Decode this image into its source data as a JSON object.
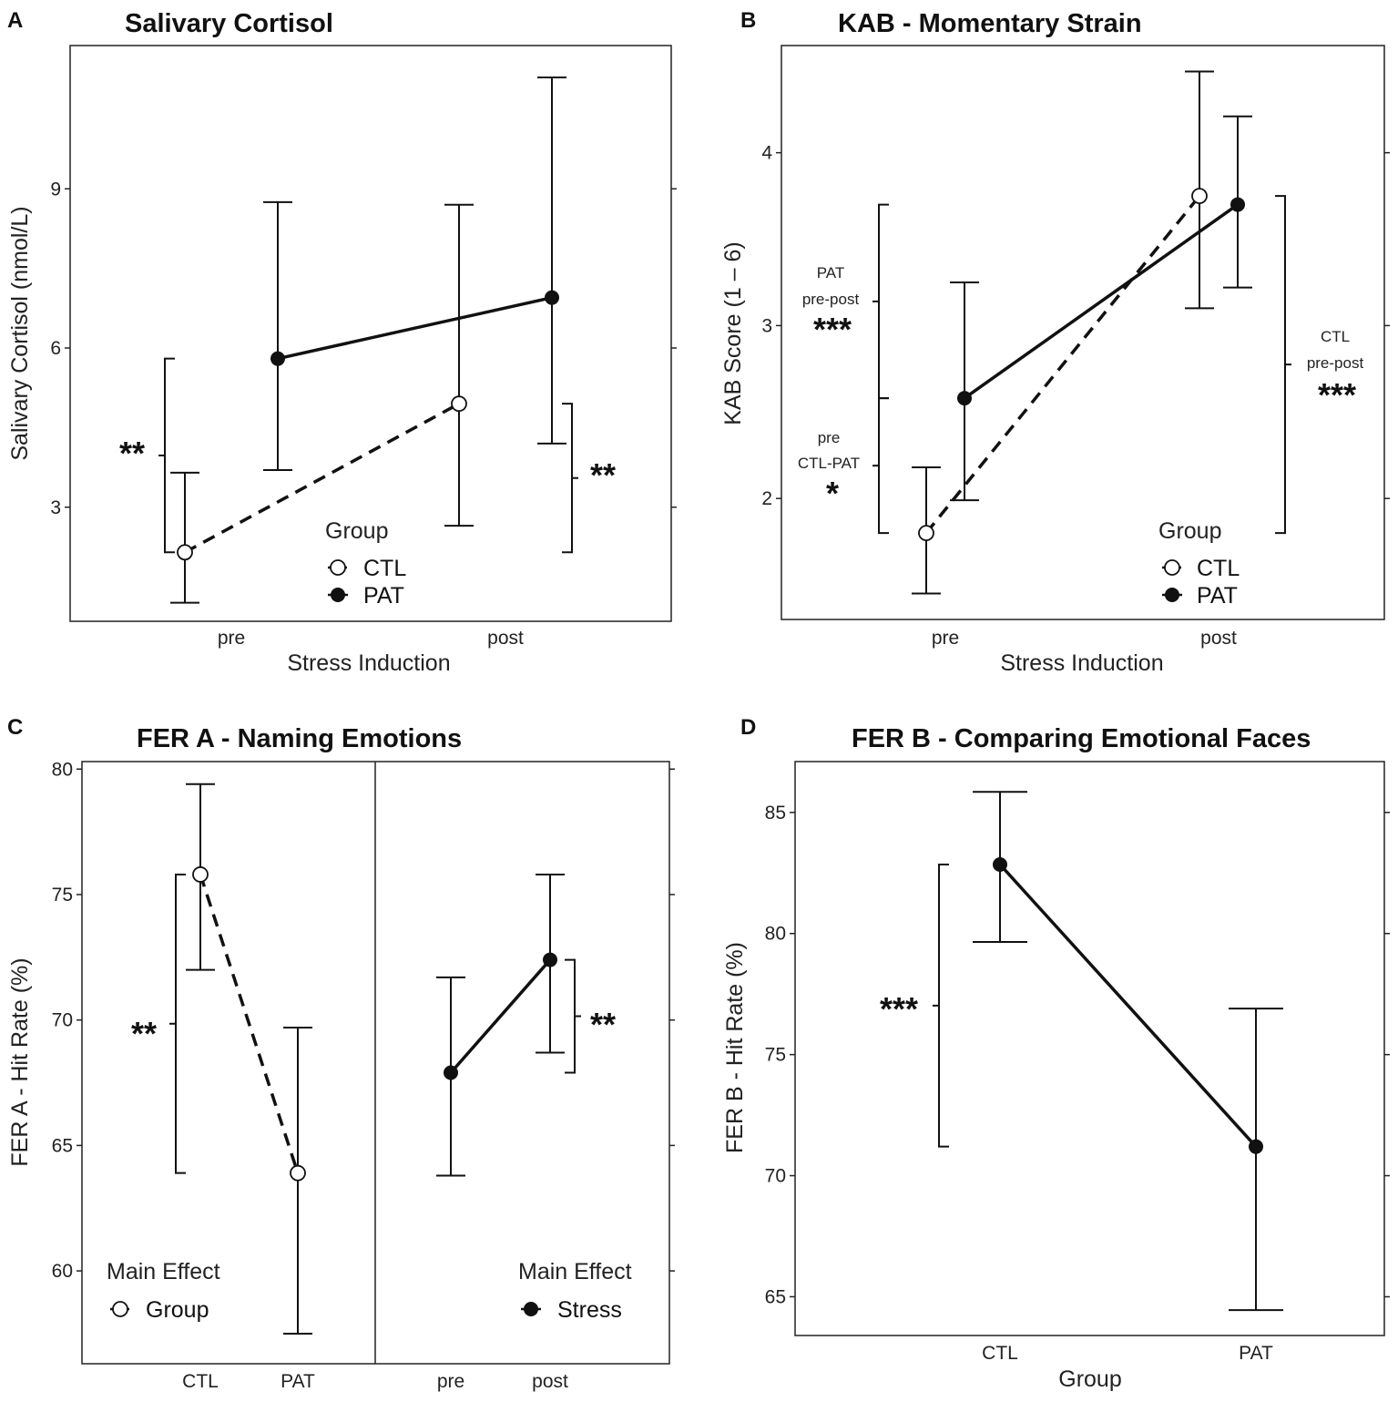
{
  "chart_data": [
    {
      "id": "A",
      "type": "line",
      "panel_label": "A",
      "title": "Salivary Cortisol",
      "xlabel": "Stress Induction",
      "ylabel": "Salivary Cortisol (nmol/L)",
      "categories": [
        "pre",
        "post"
      ],
      "yticks": [
        3,
        6,
        9
      ],
      "ylim": [
        0.85,
        11.7
      ],
      "series": [
        {
          "name": "CTL",
          "style": "open-dashed",
          "means": [
            2.15,
            4.95
          ],
          "lower": [
            1.2,
            2.65
          ],
          "upper": [
            3.65,
            8.7
          ],
          "offset": -0.17
        },
        {
          "name": "PAT",
          "style": "filled-solid",
          "means": [
            5.8,
            6.95
          ],
          "lower": [
            3.7,
            4.2
          ],
          "upper": [
            8.75,
            11.1
          ],
          "offset": 0.17
        }
      ],
      "legend": {
        "title": "Group",
        "items": [
          "CTL",
          "PAT"
        ]
      },
      "annotations": [
        {
          "label": "**",
          "lines": [],
          "bracket": [
            2.15,
            5.8
          ]
        },
        {
          "label": "**",
          "lines": [],
          "bracket": [
            2.15,
            4.95
          ]
        }
      ]
    },
    {
      "id": "B",
      "type": "line",
      "panel_label": "B",
      "title": "KAB - Momentary Strain",
      "xlabel": "Stress Induction",
      "ylabel": "KAB Score (1 – 6)",
      "categories": [
        "pre",
        "post"
      ],
      "yticks": [
        2,
        3,
        4
      ],
      "ylim": [
        1.3,
        4.62
      ],
      "series": [
        {
          "name": "CTL",
          "style": "open-dashed",
          "means": [
            1.8,
            3.75
          ],
          "lower": [
            1.45,
            3.1
          ],
          "upper": [
            2.18,
            4.47
          ],
          "offset": -0.07
        },
        {
          "name": "PAT",
          "style": "filled-solid",
          "means": [
            2.58,
            3.7
          ],
          "lower": [
            1.99,
            3.22
          ],
          "upper": [
            3.25,
            4.21
          ],
          "offset": 0.07
        }
      ],
      "legend": {
        "title": "Group",
        "items": [
          "CTL",
          "PAT"
        ]
      },
      "annotations": [
        {
          "label": "***",
          "lines": [
            "PAT",
            "pre-post"
          ],
          "bracket": [
            2.58,
            3.7
          ]
        },
        {
          "label": "*",
          "lines": [
            "pre",
            "CTL-PAT"
          ],
          "bracket": [
            1.8,
            2.58
          ]
        },
        {
          "label": "***",
          "lines": [
            "CTL",
            "pre-post"
          ],
          "bracket": [
            1.8,
            3.75
          ]
        }
      ]
    },
    {
      "id": "C",
      "type": "line",
      "panel_label": "C",
      "title": "FER A - Naming Emotions",
      "ylabel": "FER A - Hit Rate (%)",
      "yticks": [
        60,
        65,
        70,
        75,
        80
      ],
      "ylim": [
        56.3,
        80.3
      ],
      "facets": [
        {
          "name": "group",
          "categories": [
            "CTL",
            "PAT"
          ],
          "style": "open-dashed",
          "means": [
            75.8,
            63.9
          ],
          "lower": [
            72.0,
            57.5
          ],
          "upper": [
            79.4,
            69.7
          ],
          "legend": {
            "title": "Main Effect",
            "items": [
              "Group"
            ]
          },
          "annotation": {
            "label": "**",
            "bracket": [
              63.9,
              75.8
            ]
          }
        },
        {
          "name": "stress",
          "categories": [
            "pre",
            "post"
          ],
          "style": "filled-solid",
          "means": [
            67.9,
            72.4
          ],
          "lower": [
            63.8,
            68.7
          ],
          "upper": [
            71.7,
            75.8
          ],
          "legend": {
            "title": "Main Effect",
            "items": [
              "Stress"
            ]
          },
          "annotation": {
            "label": "**",
            "bracket": [
              67.9,
              72.4
            ]
          }
        }
      ]
    },
    {
      "id": "D",
      "type": "line",
      "panel_label": "D",
      "title": "FER B - Comparing Emotional Faces",
      "xlabel": "Group",
      "ylabel": "FER B - Hit Rate (%)",
      "categories": [
        "CTL",
        "PAT"
      ],
      "yticks": [
        65,
        70,
        75,
        80,
        85
      ],
      "ylim": [
        63.4,
        87.1
      ],
      "series": [
        {
          "name": "Group",
          "style": "filled-solid",
          "means": [
            82.85,
            71.2
          ],
          "lower": [
            79.65,
            64.45
          ],
          "upper": [
            85.85,
            76.9
          ],
          "offset": 0
        }
      ],
      "annotations": [
        {
          "label": "***",
          "lines": [],
          "bracket": [
            71.2,
            82.85
          ]
        }
      ]
    }
  ]
}
